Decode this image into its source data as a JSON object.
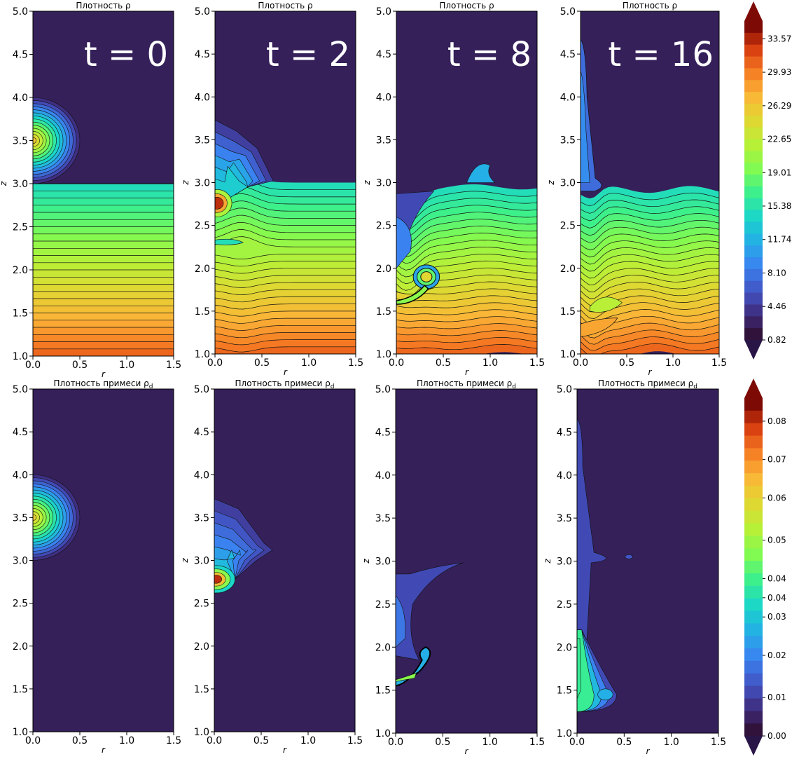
{
  "chart_data": [
    {
      "type": "contour",
      "title": "Плотность ρ",
      "time_label": "t = 0",
      "xlabel": "r",
      "ylabel": "z",
      "xlim": [
        0,
        1.5
      ],
      "ylim": [
        1,
        5
      ],
      "x_ticks": [
        "0.0",
        "0.5",
        "1.0",
        "1.5"
      ],
      "y_ticks": [
        "1.0",
        "1.5",
        "2.0",
        "2.5",
        "3.0",
        "3.5",
        "4.0",
        "4.5",
        "5.0"
      ]
    },
    {
      "type": "contour",
      "title": "Плотность ρ",
      "time_label": "t = 2",
      "xlabel": "r",
      "ylabel": "z",
      "xlim": [
        0,
        1.5
      ],
      "ylim": [
        1,
        5
      ],
      "x_ticks": [
        "0.0",
        "0.5",
        "1.0",
        "1.5"
      ],
      "y_ticks": [
        "1.0",
        "1.5",
        "2.0",
        "2.5",
        "3.0",
        "3.5",
        "4.0",
        "4.5",
        "5.0"
      ]
    },
    {
      "type": "contour",
      "title": "Плотность ρ",
      "time_label": "t = 8",
      "xlabel": "r",
      "ylabel": "z",
      "xlim": [
        0,
        1.5
      ],
      "ylim": [
        1,
        5
      ],
      "x_ticks": [
        "0.0",
        "0.5",
        "1.0",
        "1.5"
      ],
      "y_ticks": [
        "1.0",
        "1.5",
        "2.0",
        "2.5",
        "3.0",
        "3.5",
        "4.0",
        "4.5",
        "5.0"
      ]
    },
    {
      "type": "contour",
      "title": "Плотность ρ",
      "time_label": "t = 16",
      "xlabel": "r",
      "ylabel": "z",
      "xlim": [
        0,
        1.5
      ],
      "ylim": [
        1,
        5
      ],
      "x_ticks": [
        "0.0",
        "0.5",
        "1.0",
        "1.5"
      ],
      "y_ticks": [
        "1.0",
        "1.5",
        "2.0",
        "2.5",
        "3.0",
        "3.5",
        "4.0",
        "4.5",
        "5.0"
      ]
    },
    {
      "type": "contour",
      "title": "Плотность примеси ρd",
      "xlabel": "r",
      "ylabel": "",
      "xlim": [
        0,
        1.5
      ],
      "ylim": [
        1,
        5
      ],
      "x_ticks": [
        "0.0",
        "0.5",
        "1.0",
        "1.5"
      ],
      "y_ticks": [
        "1.0",
        "1.5",
        "2.0",
        "2.5",
        "3.0",
        "3.5",
        "4.0",
        "4.5",
        "5.0"
      ]
    },
    {
      "type": "contour",
      "title": "Плотность примеси ρd",
      "xlabel": "r",
      "ylabel": "z",
      "xlim": [
        0,
        1.5
      ],
      "ylim": [
        1,
        5
      ],
      "x_ticks": [
        "0.0",
        "0.5",
        "1.0",
        "1.5"
      ],
      "y_ticks": [
        "1.0",
        "1.5",
        "2.0",
        "2.5",
        "3.0",
        "3.5",
        "4.0",
        "4.5",
        "5.0"
      ]
    },
    {
      "type": "contour",
      "title": "Плотность примеси ρd",
      "xlabel": "r",
      "ylabel": "z",
      "xlim": [
        0,
        1.5
      ],
      "ylim": [
        1,
        5
      ],
      "x_ticks": [
        "0.0",
        "0.5",
        "1.0",
        "1.5"
      ],
      "y_ticks": [
        "1.0",
        "1.5",
        "2.0",
        "2.5",
        "3.0",
        "3.5",
        "4.0",
        "4.5",
        "5.0"
      ]
    },
    {
      "type": "contour",
      "title": "Плотность примеси ρd",
      "xlabel": "r",
      "ylabel": "z",
      "xlim": [
        0,
        1.5
      ],
      "ylim": [
        1,
        5
      ],
      "x_ticks": [
        "0.0",
        "0.5",
        "1.0",
        "1.5"
      ],
      "y_ticks": [
        "1.0",
        "1.5",
        "2.0",
        "2.5",
        "3.0",
        "3.5",
        "4.0",
        "4.5",
        "5.0"
      ]
    }
  ],
  "colorbars": [
    {
      "ticks": [
        "33.57",
        "29.93",
        "26.29",
        "22.65",
        "19.01",
        "15.38",
        "11.74",
        "8.10",
        "4.46",
        "0.82"
      ],
      "values": [
        33.57,
        29.93,
        26.29,
        22.65,
        19.01,
        15.38,
        11.74,
        8.1,
        4.46,
        0.82
      ],
      "range": [
        0.82,
        35.5
      ]
    },
    {
      "ticks": [
        "0.08",
        "0.07",
        "0.06",
        "0.05",
        "0.04",
        "0.04",
        "0.03",
        "0.02",
        "0.01",
        "0.00"
      ],
      "values": [
        0.082,
        0.072,
        0.062,
        0.051,
        0.041,
        0.036,
        0.031,
        0.021,
        0.01,
        0.0
      ],
      "range": [
        0.0,
        0.088
      ]
    }
  ],
  "colors": {
    "background_field": "#35205a",
    "contour_line": "#111111"
  }
}
